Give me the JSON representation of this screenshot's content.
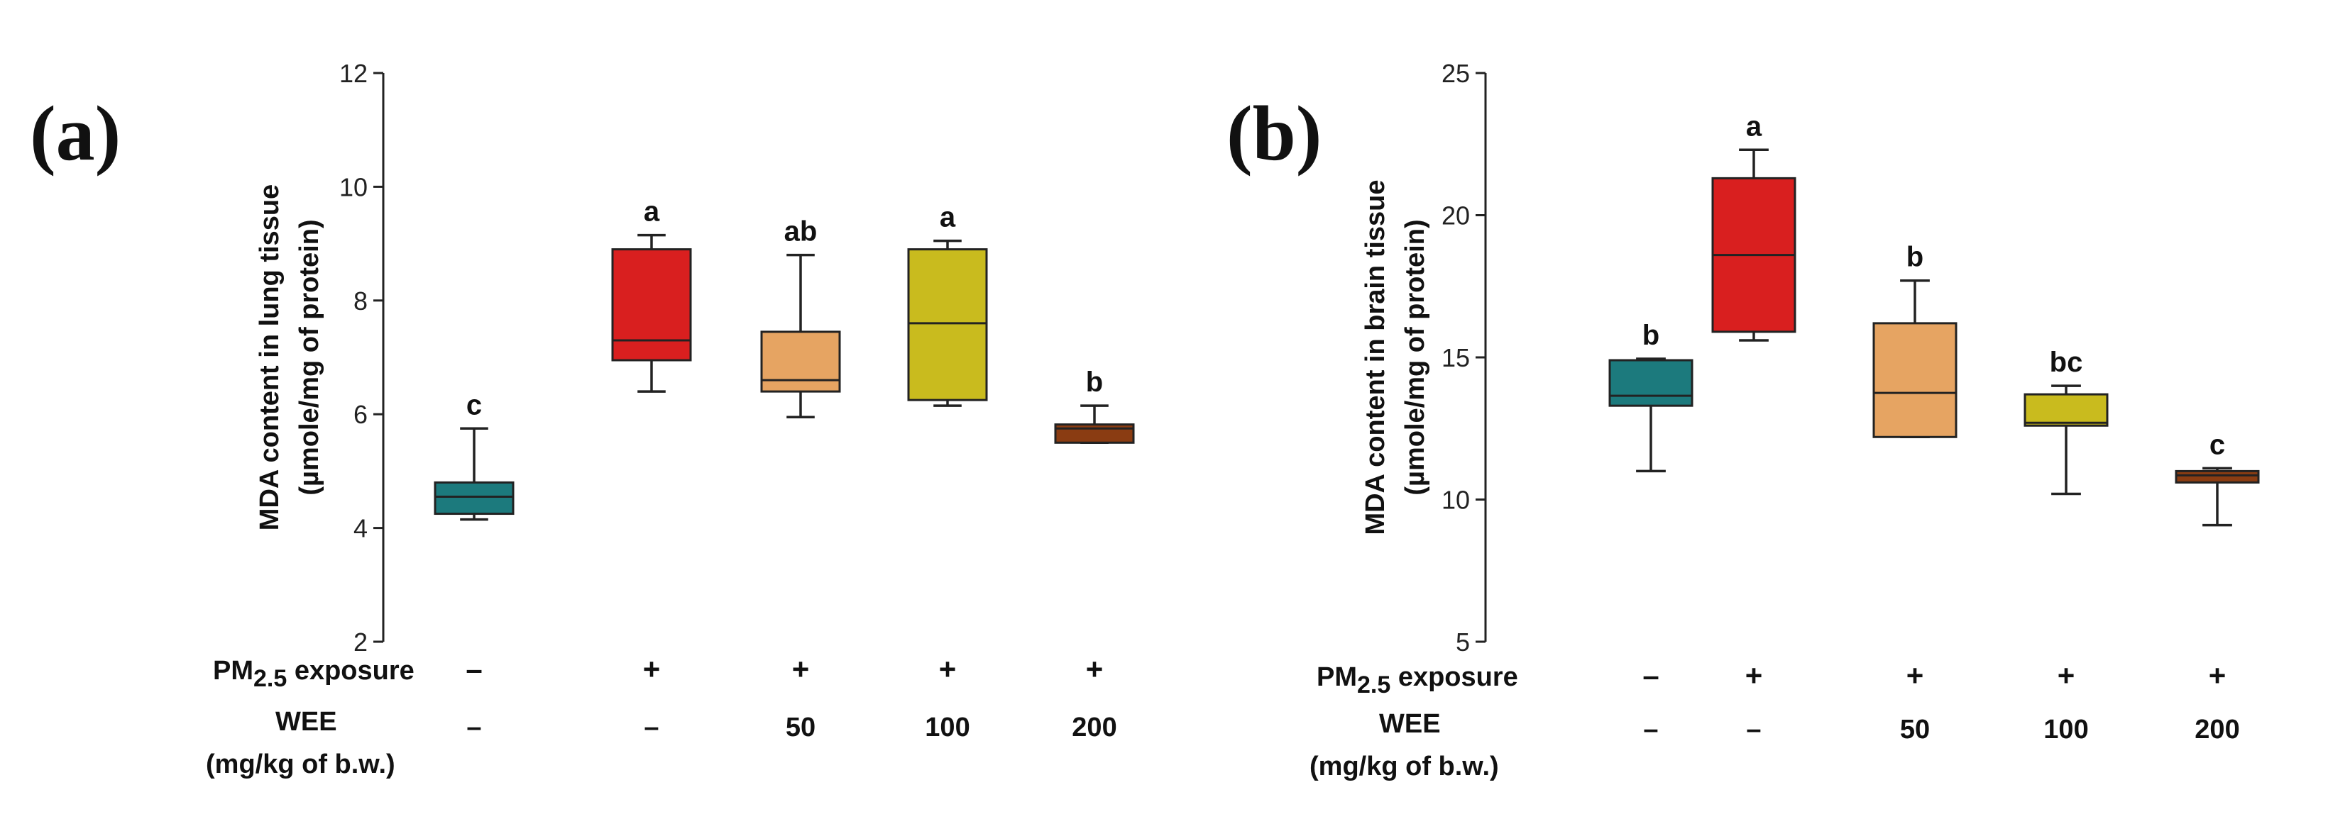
{
  "chart_data": [
    {
      "type": "box",
      "panel_label": "(a)",
      "ylabel_line1": "MDA content in lung tissue",
      "ylabel_line2": "(µmole/mg of protein)",
      "ylim": [
        2,
        12
      ],
      "yticks": [
        "2",
        "4",
        "6",
        "8",
        "10",
        "12"
      ],
      "ytick_values": [
        2,
        4,
        6,
        8,
        10,
        12
      ],
      "row_labels": {
        "pm_prefix": "PM",
        "pm_sub": "2.5",
        "pm_suffix": " exposure",
        "wee": "WEE",
        "wee_unit": "(mg/kg of b.w.)"
      },
      "groups": [
        {
          "pm": "–",
          "wee": "–",
          "min": 4.15,
          "q1": 4.25,
          "median": 4.55,
          "q3": 4.8,
          "max": 5.75,
          "letter": "c",
          "color": "#1c7a7d"
        },
        {
          "pm": "+",
          "wee": "–",
          "min": 6.4,
          "q1": 6.95,
          "median": 7.3,
          "q3": 8.9,
          "max": 9.15,
          "letter": "a",
          "color": "#d91f1f"
        },
        {
          "pm": "+",
          "wee": "50",
          "min": 5.95,
          "q1": 6.4,
          "median": 6.6,
          "q3": 7.45,
          "max": 8.8,
          "letter": "ab",
          "color": "#e6a462"
        },
        {
          "pm": "+",
          "wee": "100",
          "min": 6.15,
          "q1": 6.25,
          "median": 7.6,
          "q3": 8.9,
          "max": 9.05,
          "letter": "a",
          "color": "#c9bb1e"
        },
        {
          "pm": "+",
          "wee": "200",
          "min": 5.5,
          "q1": 5.5,
          "median": 5.75,
          "q3": 5.82,
          "max": 6.15,
          "letter": "b",
          "color": "#8a3c12"
        }
      ]
    },
    {
      "type": "box",
      "panel_label": "(b)",
      "ylabel_line1": "MDA content in brain tissue",
      "ylabel_line2": "(µmole/mg of protein)",
      "ylim": [
        5,
        25
      ],
      "yticks": [
        "5",
        "10",
        "15",
        "20",
        "25"
      ],
      "ytick_values": [
        5,
        10,
        15,
        20,
        25
      ],
      "row_labels": {
        "pm_prefix": "PM",
        "pm_sub": "2.5",
        "pm_suffix": " exposure",
        "wee": "WEE",
        "wee_unit": "(mg/kg of b.w.)"
      },
      "groups": [
        {
          "pm": "–",
          "wee": "–",
          "min": 11.0,
          "q1": 13.3,
          "median": 13.65,
          "q3": 14.9,
          "max": 14.95,
          "letter": "b",
          "color": "#1c7a7d"
        },
        {
          "pm": "+",
          "wee": "–",
          "min": 15.6,
          "q1": 15.9,
          "median": 18.6,
          "q3": 21.3,
          "max": 22.3,
          "letter": "a",
          "color": "#d91f1f"
        },
        {
          "pm": "+",
          "wee": "50",
          "min": 12.2,
          "q1": 12.2,
          "median": 13.75,
          "q3": 16.2,
          "max": 17.7,
          "letter": "b",
          "color": "#e6a462"
        },
        {
          "pm": "+",
          "wee": "100",
          "min": 10.2,
          "q1": 12.6,
          "median": 12.7,
          "q3": 13.7,
          "max": 14.0,
          "letter": "bc",
          "color": "#c9bb1e"
        },
        {
          "pm": "+",
          "wee": "200",
          "min": 9.1,
          "q1": 10.6,
          "median": 10.85,
          "q3": 11.0,
          "max": 11.1,
          "letter": "c",
          "color": "#8a3c12"
        }
      ]
    }
  ]
}
